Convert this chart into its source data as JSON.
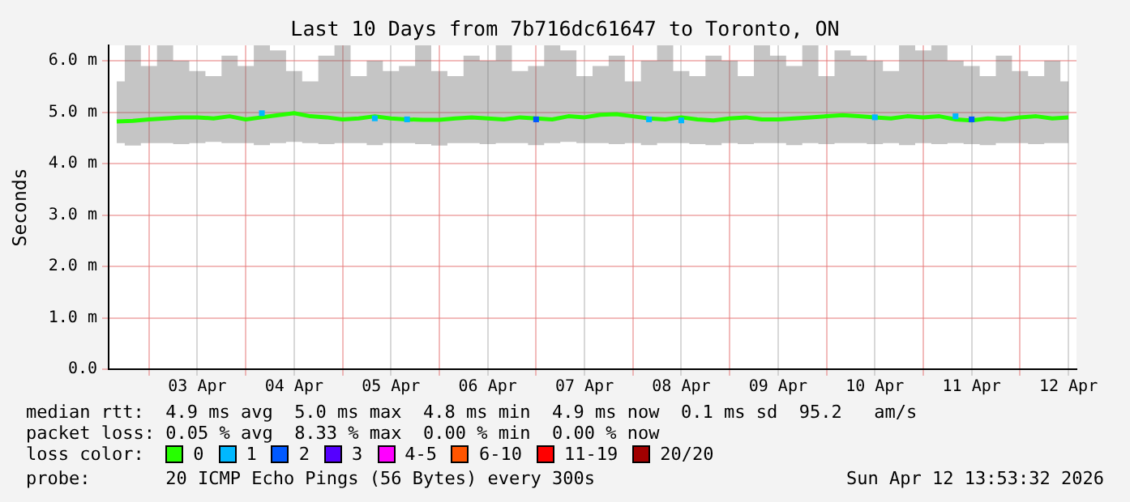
{
  "chart_data": {
    "type": "line",
    "title": "Last 10 Days from 7b716dc61647 to Toronto, ON",
    "ylabel": "Seconds",
    "x": [
      "2026-04-02T16:00",
      "2026-04-02T20:00",
      "2026-04-03T00:00",
      "2026-04-03T04:00",
      "2026-04-03T08:00",
      "2026-04-03T12:00",
      "2026-04-03T16:00",
      "2026-04-03T20:00",
      "2026-04-04T00:00",
      "2026-04-04T04:00",
      "2026-04-04T08:00",
      "2026-04-04T12:00",
      "2026-04-04T16:00",
      "2026-04-04T20:00",
      "2026-04-05T00:00",
      "2026-04-05T04:00",
      "2026-04-05T08:00",
      "2026-04-05T12:00",
      "2026-04-05T16:00",
      "2026-04-05T20:00",
      "2026-04-06T00:00",
      "2026-04-06T04:00",
      "2026-04-06T08:00",
      "2026-04-06T12:00",
      "2026-04-06T16:00",
      "2026-04-06T20:00",
      "2026-04-07T00:00",
      "2026-04-07T04:00",
      "2026-04-07T08:00",
      "2026-04-07T12:00",
      "2026-04-07T16:00",
      "2026-04-07T20:00",
      "2026-04-08T00:00",
      "2026-04-08T04:00",
      "2026-04-08T08:00",
      "2026-04-08T12:00",
      "2026-04-08T16:00",
      "2026-04-08T20:00",
      "2026-04-09T00:00",
      "2026-04-09T04:00",
      "2026-04-09T08:00",
      "2026-04-09T12:00",
      "2026-04-09T16:00",
      "2026-04-09T20:00",
      "2026-04-10T00:00",
      "2026-04-10T04:00",
      "2026-04-10T08:00",
      "2026-04-10T12:00",
      "2026-04-10T16:00",
      "2026-04-10T20:00",
      "2026-04-11T00:00",
      "2026-04-11T04:00",
      "2026-04-11T08:00",
      "2026-04-11T12:00",
      "2026-04-11T16:00",
      "2026-04-11T20:00",
      "2026-04-12T00:00",
      "2026-04-12T04:00",
      "2026-04-12T08:00",
      "2026-04-12T12:00"
    ],
    "series": [
      {
        "name": "0",
        "color": "#26ff00",
        "values": [
          4.82,
          4.83,
          4.86,
          4.88,
          4.9,
          4.9,
          4.88,
          4.92,
          4.86,
          4.9,
          4.94,
          4.98,
          4.92,
          4.9,
          4.86,
          4.88,
          4.92,
          4.88,
          4.86,
          4.85,
          4.85,
          4.88,
          4.9,
          4.88,
          4.86,
          4.9,
          4.88,
          4.86,
          4.92,
          4.9,
          4.95,
          4.96,
          4.92,
          4.88,
          4.86,
          4.9,
          4.86,
          4.84,
          4.88,
          4.9,
          4.86,
          4.86,
          4.88,
          4.9,
          4.92,
          4.94,
          4.92,
          4.9,
          4.88,
          4.92,
          4.9,
          4.92,
          4.86,
          4.84,
          4.88,
          4.86,
          4.9,
          4.92,
          4.88,
          4.9
        ],
        "lower": [
          4.4,
          4.35,
          4.4,
          4.4,
          4.38,
          4.4,
          4.42,
          4.4,
          4.4,
          4.36,
          4.4,
          4.42,
          4.4,
          4.38,
          4.4,
          4.4,
          4.36,
          4.4,
          4.4,
          4.38,
          4.35,
          4.4,
          4.4,
          4.38,
          4.4,
          4.4,
          4.36,
          4.4,
          4.42,
          4.4,
          4.4,
          4.38,
          4.4,
          4.36,
          4.4,
          4.4,
          4.38,
          4.36,
          4.4,
          4.38,
          4.4,
          4.4,
          4.36,
          4.4,
          4.38,
          4.4,
          4.4,
          4.38,
          4.4,
          4.36,
          4.4,
          4.38,
          4.4,
          4.38,
          4.36,
          4.4,
          4.4,
          4.38,
          4.4,
          4.4
        ],
        "upper": [
          5.6,
          6.3,
          5.9,
          6.3,
          6.0,
          5.8,
          5.7,
          6.1,
          5.9,
          6.3,
          6.2,
          5.8,
          5.6,
          6.1,
          6.3,
          5.7,
          6.0,
          5.8,
          5.9,
          6.3,
          5.8,
          5.7,
          6.1,
          6.0,
          6.3,
          5.8,
          5.9,
          6.3,
          6.2,
          5.7,
          5.9,
          6.1,
          5.6,
          6.0,
          6.3,
          5.8,
          5.7,
          6.1,
          6.0,
          5.7,
          6.3,
          6.1,
          5.9,
          6.3,
          5.7,
          6.2,
          6.1,
          6.0,
          5.8,
          6.3,
          6.2,
          6.3,
          6.0,
          5.9,
          5.7,
          6.1,
          5.8,
          5.7,
          6.0,
          5.6
        ]
      },
      {
        "name": "1",
        "type": "scatter",
        "color": "#00b8ff",
        "values": [
          null,
          null,
          null,
          null,
          null,
          null,
          null,
          null,
          null,
          4.98,
          null,
          null,
          null,
          null,
          null,
          null,
          4.88,
          null,
          4.86,
          null,
          null,
          null,
          null,
          null,
          null,
          null,
          null,
          null,
          null,
          null,
          null,
          null,
          null,
          4.86,
          null,
          4.84,
          null,
          null,
          null,
          null,
          null,
          null,
          null,
          null,
          null,
          null,
          null,
          4.9,
          null,
          null,
          null,
          null,
          4.92,
          null,
          null,
          null,
          null,
          null,
          null,
          null
        ]
      },
      {
        "name": "2",
        "type": "scatter",
        "color": "#0059ff",
        "values": [
          null,
          null,
          null,
          null,
          null,
          null,
          null,
          null,
          null,
          null,
          null,
          null,
          null,
          null,
          null,
          null,
          null,
          null,
          null,
          null,
          null,
          null,
          null,
          null,
          null,
          null,
          4.86,
          null,
          null,
          null,
          null,
          null,
          null,
          null,
          null,
          null,
          null,
          null,
          null,
          null,
          null,
          null,
          null,
          null,
          null,
          null,
          null,
          null,
          null,
          null,
          null,
          null,
          null,
          4.86,
          null,
          null,
          null,
          null,
          null,
          null
        ]
      },
      {
        "name": "3",
        "color": "#5500ff",
        "values": [
          null,
          null,
          null,
          null,
          null,
          null,
          null,
          null,
          null,
          null,
          null,
          null,
          null,
          null,
          null,
          null,
          null,
          null,
          null,
          null,
          null,
          null,
          null,
          null,
          null,
          null,
          null,
          null,
          null,
          null,
          null,
          null,
          null,
          null,
          null,
          null,
          null,
          null,
          null,
          null,
          null,
          null,
          null,
          null,
          null,
          null,
          null,
          null,
          null,
          null,
          null,
          null,
          null,
          null,
          null,
          null,
          null,
          null,
          null,
          null
        ]
      },
      {
        "name": "4-5",
        "color": "#ff00ff",
        "values": [
          null,
          null,
          null,
          null,
          null,
          null,
          null,
          null,
          null,
          null,
          null,
          null,
          null,
          null,
          null,
          null,
          null,
          null,
          null,
          null,
          null,
          null,
          null,
          null,
          null,
          null,
          null,
          null,
          null,
          null,
          null,
          null,
          null,
          null,
          null,
          null,
          null,
          null,
          null,
          null,
          null,
          null,
          null,
          null,
          null,
          null,
          null,
          null,
          null,
          null,
          null,
          null,
          null,
          null,
          null,
          null,
          null,
          null,
          null,
          null
        ]
      },
      {
        "name": "6-10",
        "color": "#ff5500",
        "values": [
          null,
          null,
          null,
          null,
          null,
          null,
          null,
          null,
          null,
          null,
          null,
          null,
          null,
          null,
          null,
          null,
          null,
          null,
          null,
          null,
          null,
          null,
          null,
          null,
          null,
          null,
          null,
          null,
          null,
          null,
          null,
          null,
          null,
          null,
          null,
          null,
          null,
          null,
          null,
          null,
          null,
          null,
          null,
          null,
          null,
          null,
          null,
          null,
          null,
          null,
          null,
          null,
          null,
          null,
          null,
          null,
          null,
          null,
          null,
          null
        ]
      },
      {
        "name": "11-19",
        "color": "#ff0000",
        "values": [
          null,
          null,
          null,
          null,
          null,
          null,
          null,
          null,
          null,
          null,
          null,
          null,
          null,
          null,
          null,
          null,
          null,
          null,
          null,
          null,
          null,
          null,
          null,
          null,
          null,
          null,
          null,
          null,
          null,
          null,
          null,
          null,
          null,
          null,
          null,
          null,
          null,
          null,
          null,
          null,
          null,
          null,
          null,
          null,
          null,
          null,
          null,
          null,
          null,
          null,
          null,
          null,
          null,
          null,
          null,
          null,
          null,
          null,
          null,
          null
        ]
      },
      {
        "name": "20/20",
        "color": "#a10000",
        "values": [
          null,
          null,
          null,
          null,
          null,
          null,
          null,
          null,
          null,
          null,
          null,
          null,
          null,
          null,
          null,
          null,
          null,
          null,
          null,
          null,
          null,
          null,
          null,
          null,
          null,
          null,
          null,
          null,
          null,
          null,
          null,
          null,
          null,
          null,
          null,
          null,
          null,
          null,
          null,
          null,
          null,
          null,
          null,
          null,
          null,
          null,
          null,
          null,
          null,
          null,
          null,
          null,
          null,
          null,
          null,
          null,
          null,
          null,
          null,
          null
        ]
      }
    ],
    "xlim": [
      "2026-04-02T14:00",
      "2026-04-12T14:00"
    ],
    "xticks": [
      {
        "value": "2026-04-03T00:00",
        "label": null
      },
      {
        "value": "2026-04-03T12:00",
        "label": "03 Apr"
      },
      {
        "value": "2026-04-04T00:00",
        "label": null
      },
      {
        "value": "2026-04-04T12:00",
        "label": "04 Apr"
      },
      {
        "value": "2026-04-05T00:00",
        "label": null
      },
      {
        "value": "2026-04-05T12:00",
        "label": "05 Apr"
      },
      {
        "value": "2026-04-06T00:00",
        "label": null
      },
      {
        "value": "2026-04-06T12:00",
        "label": "06 Apr"
      },
      {
        "value": "2026-04-07T00:00",
        "label": null
      },
      {
        "value": "2026-04-07T12:00",
        "label": "07 Apr"
      },
      {
        "value": "2026-04-08T00:00",
        "label": null
      },
      {
        "value": "2026-04-08T12:00",
        "label": "08 Apr"
      },
      {
        "value": "2026-04-09T00:00",
        "label": null
      },
      {
        "value": "2026-04-09T12:00",
        "label": "09 Apr"
      },
      {
        "value": "2026-04-10T00:00",
        "label": null
      },
      {
        "value": "2026-04-10T12:00",
        "label": "10 Apr"
      },
      {
        "value": "2026-04-11T00:00",
        "label": null
      },
      {
        "value": "2026-04-11T12:00",
        "label": "11 Apr"
      },
      {
        "value": "2026-04-12T00:00",
        "label": null
      },
      {
        "value": "2026-04-12T12:00",
        "label": "12 Apr"
      }
    ],
    "ylim": [
      0,
      6.3
    ],
    "yticks": [
      {
        "value": 0,
        "label": "0.0"
      },
      {
        "value": 1,
        "label": "1.0 m"
      },
      {
        "value": 2,
        "label": "2.0 m"
      },
      {
        "value": 3,
        "label": "3.0 m"
      },
      {
        "value": 4,
        "label": "4.0 m"
      },
      {
        "value": 5,
        "label": "5.0 m"
      },
      {
        "value": 6,
        "label": "6.0 m"
      }
    ],
    "grid": true,
    "legend": "bottom",
    "legend_title": "loss color:",
    "line_style": "solid",
    "annotations": [
      "median rtt:  4.9 ms avg  5.0 ms max  4.8 ms min  4.9 ms now  0.1 ms sd  95.2   am/s",
      "packet loss: 0.05 % avg  8.33 % max  0.00 % min  0.00 % now",
      "probe:       20 ICMP Echo Pings (56 Bytes) every 300s",
      "Sun Apr 12 13:53:32 2026"
    ]
  }
}
